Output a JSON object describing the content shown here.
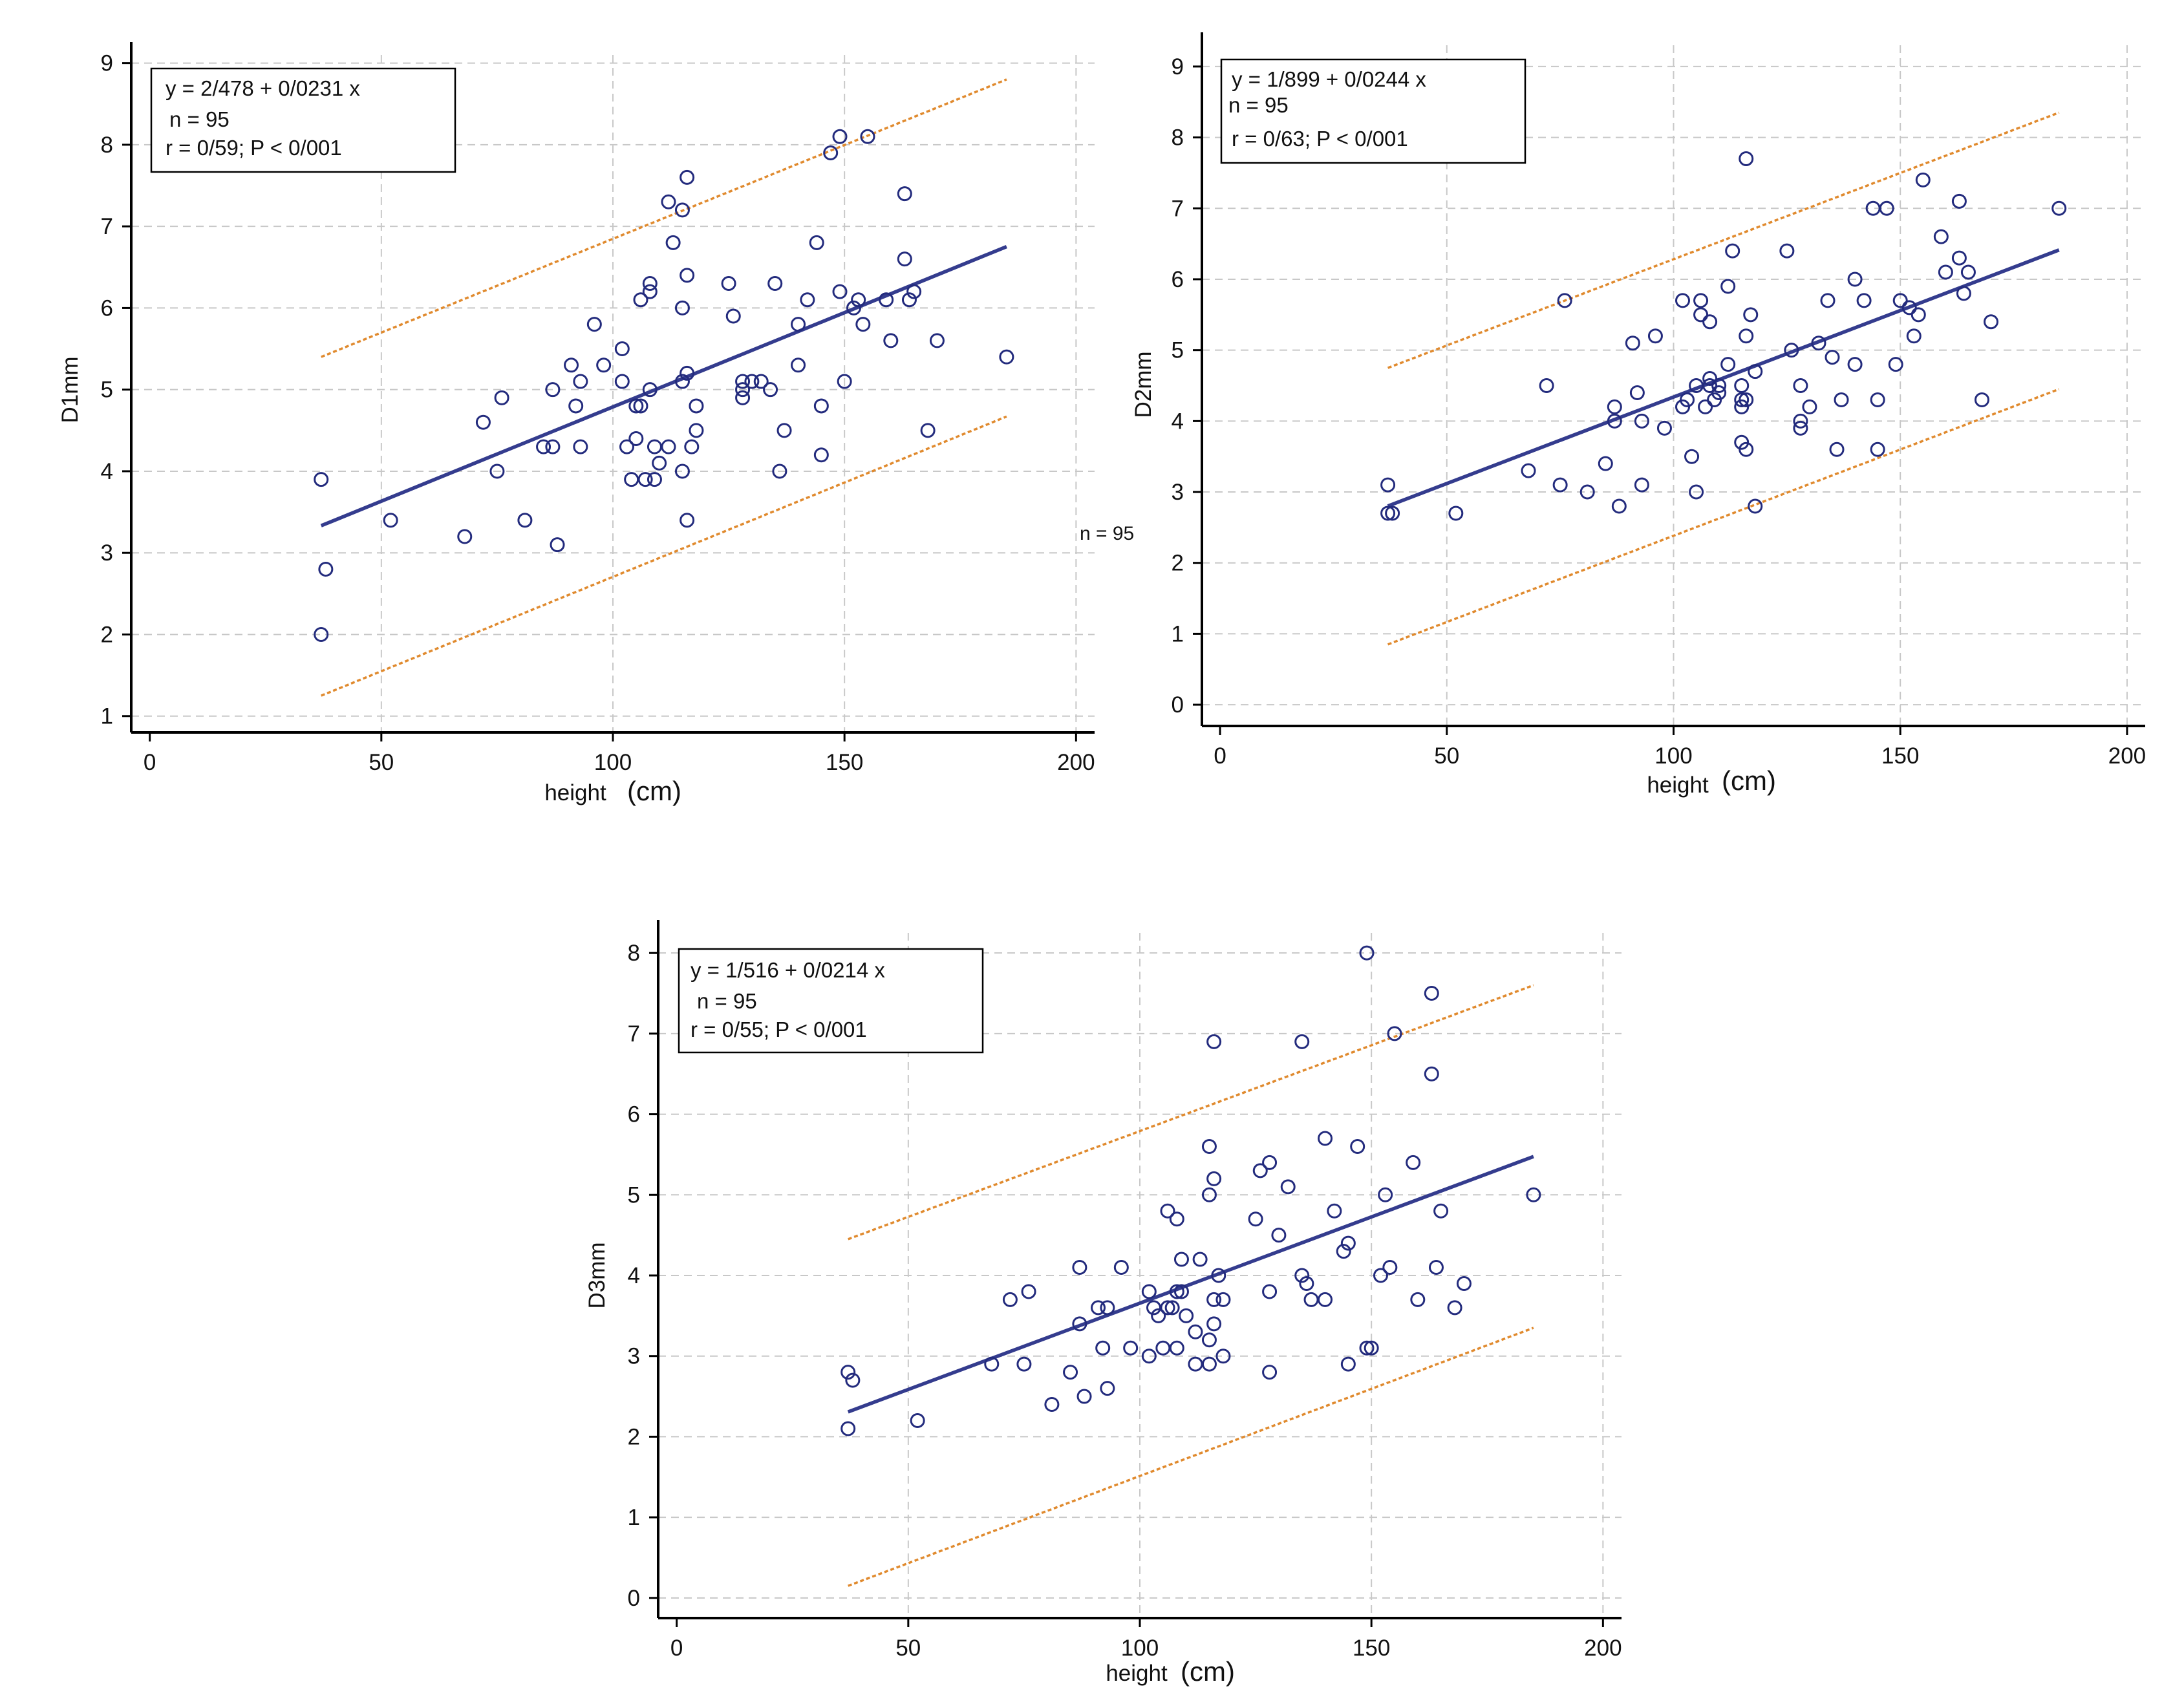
{
  "colors": {
    "point": "#232b7d",
    "fit_line": "#343c8e",
    "band_line": "#e08a2e",
    "grid": "#c8c8c8",
    "axis": "#000000"
  },
  "side_note": "n = 95",
  "chart_data": [
    {
      "type": "scatter",
      "id": "d1",
      "xlabel": "height",
      "xunit": "(cm)",
      "ylabel": "D1mm",
      "xlim": [
        -4,
        204
      ],
      "ylim": [
        0.8,
        9.1
      ],
      "xticks": [
        0,
        50,
        100,
        150,
        200
      ],
      "yticks": [
        1,
        2,
        3,
        4,
        5,
        6,
        7,
        8,
        9
      ],
      "grid": true,
      "annotation": [
        "y = 2/478  +  0/0231  x",
        "n = 95",
        "r = 0/59; P < 0/001"
      ],
      "fit": {
        "intercept": 2.478,
        "slope": 0.0231,
        "x_range": [
          37,
          185
        ]
      },
      "band": {
        "upper": [
          [
            37,
            5.4
          ],
          [
            185,
            8.8
          ]
        ],
        "lower": [
          [
            37,
            1.25
          ],
          [
            185,
            4.67
          ]
        ]
      },
      "points": [
        [
          37,
          3.9
        ],
        [
          37,
          2.0
        ],
        [
          38,
          2.8
        ],
        [
          52,
          3.4
        ],
        [
          68,
          3.2
        ],
        [
          72,
          4.6
        ],
        [
          75,
          4.0
        ],
        [
          76,
          4.9
        ],
        [
          81,
          3.4
        ],
        [
          85,
          4.3
        ],
        [
          87,
          4.3
        ],
        [
          87,
          5.0
        ],
        [
          88,
          3.1
        ],
        [
          91,
          5.3
        ],
        [
          92,
          4.8
        ],
        [
          93,
          5.1
        ],
        [
          93,
          4.3
        ],
        [
          96,
          5.8
        ],
        [
          98,
          5.3
        ],
        [
          102,
          5.5
        ],
        [
          102,
          5.1
        ],
        [
          103,
          4.3
        ],
        [
          104,
          3.9
        ],
        [
          105,
          4.4
        ],
        [
          105,
          4.8
        ],
        [
          106,
          6.1
        ],
        [
          106,
          4.8
        ],
        [
          107,
          3.9
        ],
        [
          108,
          6.2
        ],
        [
          108,
          6.3
        ],
        [
          108,
          5.0
        ],
        [
          109,
          4.3
        ],
        [
          109,
          3.9
        ],
        [
          110,
          4.1
        ],
        [
          112,
          4.3
        ],
        [
          112,
          7.3
        ],
        [
          113,
          6.8
        ],
        [
          115,
          7.2
        ],
        [
          115,
          6.0
        ],
        [
          115,
          5.1
        ],
        [
          115,
          4.0
        ],
        [
          116,
          7.6
        ],
        [
          116,
          6.4
        ],
        [
          116,
          5.2
        ],
        [
          116,
          3.4
        ],
        [
          117,
          4.3
        ],
        [
          118,
          4.8
        ],
        [
          118,
          4.5
        ],
        [
          125,
          6.3
        ],
        [
          126,
          5.9
        ],
        [
          128,
          5.1
        ],
        [
          128,
          5.0
        ],
        [
          128,
          4.9
        ],
        [
          130,
          5.1
        ],
        [
          132,
          5.1
        ],
        [
          134,
          5.0
        ],
        [
          135,
          6.3
        ],
        [
          136,
          4.0
        ],
        [
          137,
          4.5
        ],
        [
          140,
          5.8
        ],
        [
          140,
          5.3
        ],
        [
          142,
          6.1
        ],
        [
          144,
          6.8
        ],
        [
          145,
          4.8
        ],
        [
          145,
          4.2
        ],
        [
          147,
          7.9
        ],
        [
          149,
          8.1
        ],
        [
          149,
          6.2
        ],
        [
          150,
          5.1
        ],
        [
          152,
          6.0
        ],
        [
          153,
          6.1
        ],
        [
          154,
          5.8
        ],
        [
          155,
          8.1
        ],
        [
          159,
          6.1
        ],
        [
          160,
          5.6
        ],
        [
          163,
          7.4
        ],
        [
          163,
          6.6
        ],
        [
          164,
          6.1
        ],
        [
          165,
          6.2
        ],
        [
          168,
          4.5
        ],
        [
          170,
          5.6
        ],
        [
          185,
          5.4
        ]
      ]
    },
    {
      "type": "scatter",
      "id": "d2",
      "xlabel": "height",
      "xunit": "(cm)",
      "ylabel": "D2mm",
      "xlim": [
        -4,
        204
      ],
      "ylim": [
        -0.3,
        9.3
      ],
      "xticks": [
        0,
        50,
        100,
        150,
        200
      ],
      "yticks": [
        0,
        1,
        2,
        3,
        4,
        5,
        6,
        7,
        8,
        9
      ],
      "grid": true,
      "annotation": [
        "y = 1/899  +  0/0244  x",
        "n = 95",
        "r = 0/63; P < 0/001"
      ],
      "fit": {
        "intercept": 1.899,
        "slope": 0.0244,
        "x_range": [
          37,
          185
        ]
      },
      "band": {
        "upper": [
          [
            37,
            4.75
          ],
          [
            185,
            8.35
          ]
        ],
        "lower": [
          [
            37,
            0.85
          ],
          [
            185,
            4.45
          ]
        ]
      },
      "points": [
        [
          37,
          3.1
        ],
        [
          37,
          2.7
        ],
        [
          38,
          2.7
        ],
        [
          52,
          2.7
        ],
        [
          68,
          3.3
        ],
        [
          72,
          4.5
        ],
        [
          75,
          3.1
        ],
        [
          76,
          5.7
        ],
        [
          81,
          3.0
        ],
        [
          85,
          3.4
        ],
        [
          87,
          4.2
        ],
        [
          87,
          4.0
        ],
        [
          88,
          2.8
        ],
        [
          91,
          5.1
        ],
        [
          92,
          4.4
        ],
        [
          93,
          4.0
        ],
        [
          93,
          3.1
        ],
        [
          96,
          5.2
        ],
        [
          98,
          3.9
        ],
        [
          102,
          5.7
        ],
        [
          102,
          4.2
        ],
        [
          103,
          4.3
        ],
        [
          104,
          3.5
        ],
        [
          105,
          4.5
        ],
        [
          105,
          3.0
        ],
        [
          106,
          5.7
        ],
        [
          106,
          5.5
        ],
        [
          107,
          4.2
        ],
        [
          108,
          5.4
        ],
        [
          108,
          4.6
        ],
        [
          108,
          4.5
        ],
        [
          109,
          4.3
        ],
        [
          110,
          4.4
        ],
        [
          110,
          4.5
        ],
        [
          112,
          5.9
        ],
        [
          112,
          4.8
        ],
        [
          113,
          6.4
        ],
        [
          115,
          4.5
        ],
        [
          115,
          4.3
        ],
        [
          115,
          4.2
        ],
        [
          115,
          3.7
        ],
        [
          116,
          7.7
        ],
        [
          116,
          5.2
        ],
        [
          116,
          4.3
        ],
        [
          116,
          3.6
        ],
        [
          117,
          5.5
        ],
        [
          118,
          4.7
        ],
        [
          118,
          2.8
        ],
        [
          125,
          6.4
        ],
        [
          126,
          5.0
        ],
        [
          128,
          4.5
        ],
        [
          128,
          4.0
        ],
        [
          128,
          3.9
        ],
        [
          130,
          4.2
        ],
        [
          132,
          5.1
        ],
        [
          134,
          5.7
        ],
        [
          135,
          4.9
        ],
        [
          136,
          3.6
        ],
        [
          137,
          4.3
        ],
        [
          140,
          6.0
        ],
        [
          140,
          4.8
        ],
        [
          142,
          5.7
        ],
        [
          144,
          7.0
        ],
        [
          145,
          4.3
        ],
        [
          145,
          3.6
        ],
        [
          147,
          7.0
        ],
        [
          149,
          4.8
        ],
        [
          150,
          5.7
        ],
        [
          152,
          5.6
        ],
        [
          153,
          5.2
        ],
        [
          154,
          5.5
        ],
        [
          155,
          7.4
        ],
        [
          159,
          6.6
        ],
        [
          160,
          6.1
        ],
        [
          163,
          7.1
        ],
        [
          163,
          6.3
        ],
        [
          164,
          5.8
        ],
        [
          165,
          6.1
        ],
        [
          168,
          4.3
        ],
        [
          170,
          5.4
        ],
        [
          185,
          7.0
        ]
      ]
    },
    {
      "type": "scatter",
      "id": "d3",
      "xlabel": "height",
      "xunit": "(cm)",
      "ylabel": "D3mm",
      "xlim": [
        -4,
        204
      ],
      "ylim": [
        -0.25,
        8.25
      ],
      "xticks": [
        0,
        50,
        100,
        150,
        200
      ],
      "yticks": [
        0,
        1,
        2,
        3,
        4,
        5,
        6,
        7,
        8
      ],
      "grid": true,
      "annotation": [
        "y = 1/516  +  0/0214  x",
        "n = 95",
        "r = 0/55; P < 0/001"
      ],
      "fit": {
        "intercept": 1.516,
        "slope": 0.0214,
        "x_range": [
          37,
          185
        ]
      },
      "band": {
        "upper": [
          [
            37,
            4.45
          ],
          [
            185,
            7.6
          ]
        ],
        "lower": [
          [
            37,
            0.15
          ],
          [
            185,
            3.35
          ]
        ]
      },
      "points": [
        [
          37,
          2.8
        ],
        [
          37,
          2.1
        ],
        [
          38,
          2.7
        ],
        [
          52,
          2.2
        ],
        [
          68,
          2.9
        ],
        [
          72,
          3.7
        ],
        [
          75,
          2.9
        ],
        [
          76,
          3.8
        ],
        [
          81,
          2.4
        ],
        [
          85,
          2.8
        ],
        [
          87,
          3.4
        ],
        [
          87,
          4.1
        ],
        [
          88,
          2.5
        ],
        [
          91,
          3.6
        ],
        [
          92,
          3.1
        ],
        [
          93,
          3.6
        ],
        [
          93,
          2.6
        ],
        [
          96,
          4.1
        ],
        [
          98,
          3.1
        ],
        [
          102,
          3.8
        ],
        [
          102,
          3.0
        ],
        [
          103,
          3.6
        ],
        [
          104,
          3.5
        ],
        [
          105,
          3.1
        ],
        [
          106,
          4.8
        ],
        [
          106,
          3.6
        ],
        [
          107,
          3.6
        ],
        [
          108,
          3.8
        ],
        [
          108,
          4.7
        ],
        [
          108,
          3.1
        ],
        [
          109,
          4.2
        ],
        [
          109,
          3.8
        ],
        [
          110,
          3.5
        ],
        [
          112,
          3.3
        ],
        [
          112,
          2.9
        ],
        [
          113,
          4.2
        ],
        [
          115,
          5.6
        ],
        [
          115,
          5.0
        ],
        [
          115,
          3.2
        ],
        [
          115,
          2.9
        ],
        [
          116,
          6.9
        ],
        [
          116,
          5.2
        ],
        [
          116,
          3.7
        ],
        [
          116,
          3.4
        ],
        [
          117,
          4.0
        ],
        [
          118,
          3.7
        ],
        [
          118,
          3.0
        ],
        [
          125,
          4.7
        ],
        [
          126,
          5.3
        ],
        [
          128,
          5.4
        ],
        [
          128,
          3.8
        ],
        [
          128,
          2.8
        ],
        [
          130,
          4.5
        ],
        [
          132,
          5.1
        ],
        [
          135,
          6.9
        ],
        [
          135,
          4.0
        ],
        [
          136,
          3.9
        ],
        [
          137,
          3.7
        ],
        [
          140,
          5.7
        ],
        [
          140,
          3.7
        ],
        [
          142,
          4.8
        ],
        [
          144,
          4.3
        ],
        [
          145,
          4.4
        ],
        [
          145,
          2.9
        ],
        [
          147,
          5.6
        ],
        [
          149,
          8.0
        ],
        [
          149,
          3.1
        ],
        [
          150,
          3.1
        ],
        [
          152,
          4.0
        ],
        [
          153,
          5.0
        ],
        [
          154,
          4.1
        ],
        [
          155,
          7.0
        ],
        [
          159,
          5.4
        ],
        [
          160,
          3.7
        ],
        [
          163,
          7.5
        ],
        [
          163,
          6.5
        ],
        [
          164,
          4.1
        ],
        [
          165,
          4.8
        ],
        [
          168,
          3.6
        ],
        [
          170,
          3.9
        ],
        [
          185,
          5.0
        ]
      ]
    }
  ]
}
